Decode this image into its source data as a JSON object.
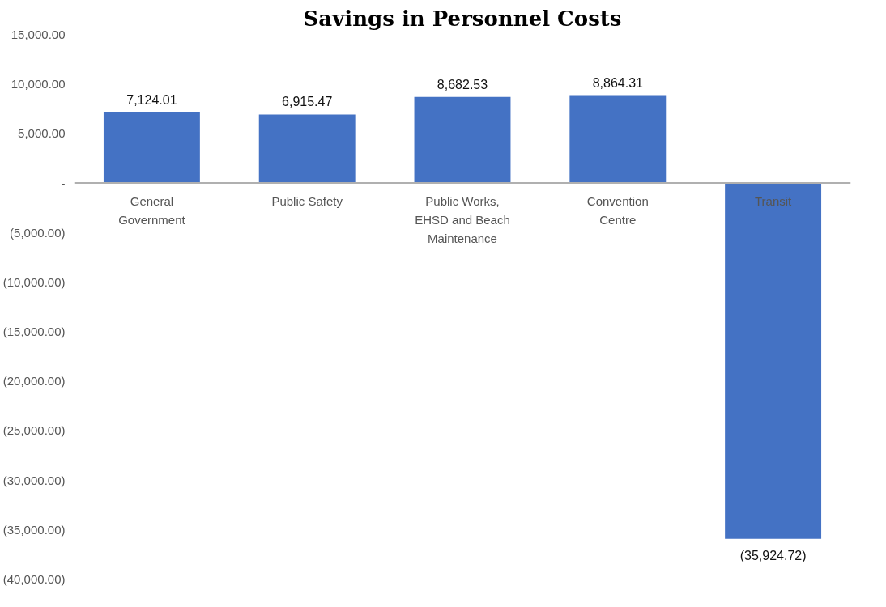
{
  "chart_data": {
    "type": "bar",
    "title": "Savings in Personnel Costs",
    "categories": [
      "General Government",
      "Public Safety",
      "Public Works, EHSD and Beach Maintenance",
      "Convention Centre",
      "Transit"
    ],
    "series": [
      {
        "color": "#4472c4",
        "values": [
          7124.01,
          6915.47,
          8682.53,
          8864.31,
          -35924.72
        ],
        "value_labels": [
          "7,124.01",
          "6,915.47",
          "8,682.53",
          "8,864.31",
          "(35,924.72)"
        ]
      }
    ],
    "ylim": [
      -40000,
      15000
    ],
    "yticks": [
      {
        "value": 15000,
        "label": "15,000.00"
      },
      {
        "value": 10000,
        "label": "10,000.00"
      },
      {
        "value": 5000,
        "label": "5,000.00"
      },
      {
        "value": 0,
        "label": "-"
      },
      {
        "value": -5000,
        "label": "(5,000.00)"
      },
      {
        "value": -10000,
        "label": "(10,000.00)"
      },
      {
        "value": -15000,
        "label": "(15,000.00)"
      },
      {
        "value": -20000,
        "label": "(20,000.00)"
      },
      {
        "value": -25000,
        "label": "(25,000.00)"
      },
      {
        "value": -30000,
        "label": "(30,000.00)"
      },
      {
        "value": -35000,
        "label": "(35,000.00)"
      },
      {
        "value": -40000,
        "label": "(40,000.00)"
      }
    ],
    "grid": false
  }
}
